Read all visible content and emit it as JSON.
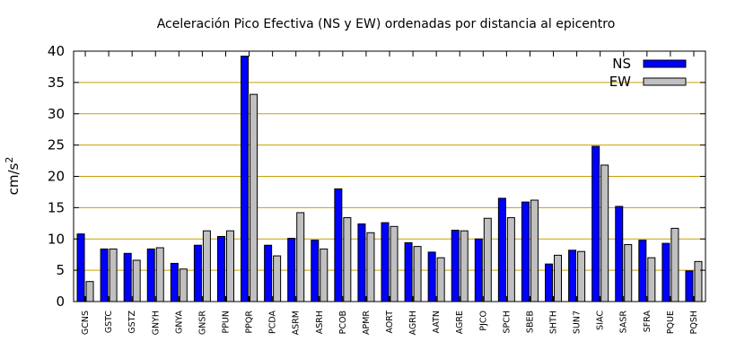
{
  "chart_data": {
    "type": "bar",
    "title": "Aceleración Pico Efectiva (NS y EW) ordenadas por distancia al epicentro",
    "ylabel": "cm/s",
    "ylabel_sup": "2",
    "xlabel": "",
    "ylim": [
      0,
      40
    ],
    "yticks": [
      0,
      5,
      10,
      15,
      20,
      25,
      30,
      35,
      40
    ],
    "grid": true,
    "legend_position": "top-right",
    "categories": [
      "GCNS",
      "GSTC",
      "GSTZ",
      "GNYH",
      "GNYA",
      "GNSR",
      "PPUN",
      "PPQR",
      "PCDA",
      "ASRM",
      "ASRH",
      "PCOB",
      "APMR",
      "AORT",
      "AGRH",
      "AATN",
      "AGRE",
      "PJCO",
      "SPCH",
      "SBEB",
      "SHTH",
      "SUN7",
      "SIAC",
      "SASR",
      "SFRA",
      "PQUE",
      "PQSH"
    ],
    "series": [
      {
        "name": "NS",
        "color": "#0000ff",
        "values": [
          10.8,
          8.4,
          7.7,
          8.4,
          6.1,
          9.0,
          10.4,
          39.2,
          9.0,
          10.1,
          9.8,
          18.0,
          12.4,
          12.6,
          9.4,
          7.9,
          11.4,
          10.0,
          16.5,
          15.9,
          6.0,
          8.2,
          24.8,
          15.2,
          9.8,
          9.3,
          4.9
        ]
      },
      {
        "name": "EW",
        "color": "#c0c0c0",
        "values": [
          3.2,
          8.4,
          6.6,
          8.6,
          5.2,
          11.3,
          11.3,
          33.1,
          7.3,
          14.2,
          8.4,
          13.4,
          11.0,
          12.0,
          8.8,
          7.0,
          11.3,
          13.3,
          13.4,
          16.2,
          7.4,
          8.0,
          21.8,
          9.1,
          7.0,
          11.7,
          6.4
        ]
      }
    ]
  }
}
